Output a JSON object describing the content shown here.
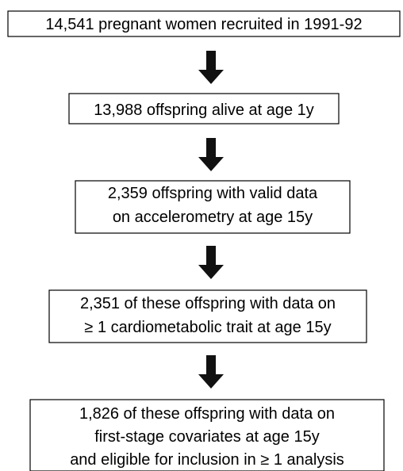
{
  "nodes": [
    {
      "lines": [
        "14,541 pregnant women recruited in 1991-92"
      ]
    },
    {
      "lines": [
        "13,988 offspring alive at age 1y"
      ]
    },
    {
      "lines": [
        "2,359 offspring with valid data",
        "on accelerometry at age 15y"
      ]
    },
    {
      "lines": [
        "2,351 of these offspring with data on",
        "≥ 1 cardiometabolic trait at age 15y"
      ]
    },
    {
      "lines": [
        "1,826 of these offspring with data on",
        "first-stage covariates at age 15y",
        "and eligible for inclusion in ≥ 1 analysis"
      ]
    }
  ]
}
